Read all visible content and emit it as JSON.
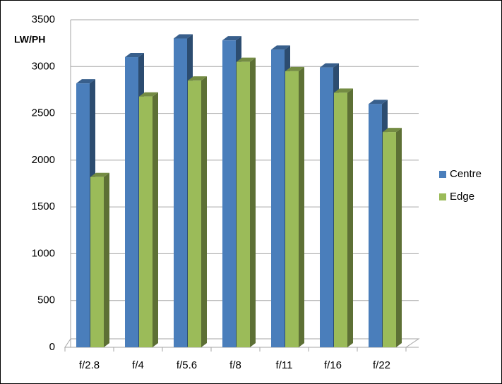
{
  "chart_data": {
    "type": "bar3d",
    "y_label": "LW/PH",
    "categories": [
      "f/2.8",
      "f/4",
      "f/5.6",
      "f/8",
      "f/11",
      "f/16",
      "f/22"
    ],
    "series": [
      {
        "name": "Centre",
        "color": "#4a7ebb",
        "values": [
          2820,
          3100,
          3300,
          3280,
          3180,
          2990,
          2600
        ]
      },
      {
        "name": "Edge",
        "color": "#9bbb59",
        "values": [
          1820,
          2680,
          2850,
          3050,
          2950,
          2720,
          2300
        ]
      }
    ],
    "ylim": [
      0,
      3500
    ],
    "yticks": [
      0,
      500,
      1000,
      1500,
      2000,
      2500,
      3000,
      3500
    ],
    "grid": true,
    "legend": "right"
  }
}
